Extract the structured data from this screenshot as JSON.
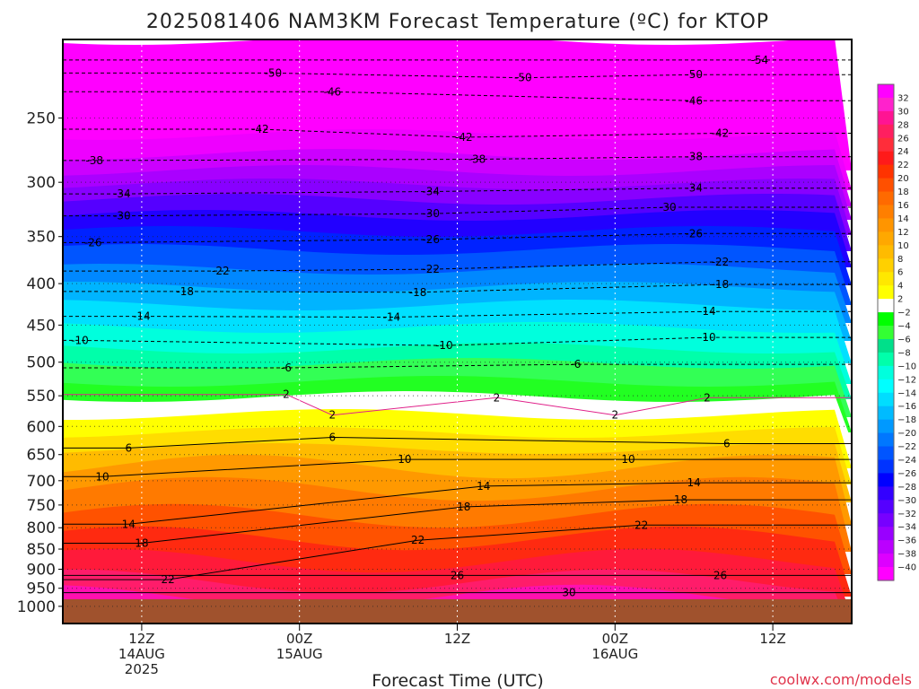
{
  "chart_data": {
    "type": "heatmap",
    "title": "2025081406 NAM3KM Forecast Temperature (ºC) for KTOP",
    "xlabel": "Forecast Time (UTC)",
    "ylabel": "",
    "credit": "coolwx.com/models",
    "x_range_hours": [
      0,
      60
    ],
    "y_range_hpa": [
      200,
      1050
    ],
    "y_scale": "log",
    "ground_level_hpa": 980,
    "ground_color": "#a0522d",
    "y_ticks": [
      250,
      300,
      350,
      400,
      450,
      500,
      550,
      600,
      650,
      700,
      750,
      800,
      850,
      900,
      950,
      1000
    ],
    "x_ticks": [
      {
        "hour": 6,
        "line1": "12Z",
        "line2": "14AUG",
        "line3": "2025"
      },
      {
        "hour": 18,
        "line1": "00Z",
        "line2": "15AUG",
        "line3": ""
      },
      {
        "hour": 30,
        "line1": "12Z",
        "line2": "",
        "line3": ""
      },
      {
        "hour": 42,
        "line1": "00Z",
        "line2": "16AUG",
        "line3": ""
      },
      {
        "hour": 54,
        "line1": "12Z",
        "line2": "",
        "line3": ""
      }
    ],
    "grid": true,
    "colorbar": {
      "position": "right",
      "labels": [
        "32",
        "30",
        "28",
        "26",
        "24",
        "22",
        "20",
        "18",
        "16",
        "14",
        "12",
        "10",
        "8",
        "6",
        "4",
        "2",
        "−2",
        "−4",
        "−6",
        "−8",
        "−10",
        "−12",
        "−14",
        "−16",
        "−18",
        "−20",
        "−22",
        "−24",
        "−26",
        "−28",
        "−30",
        "−32",
        "−34",
        "−36",
        "−38",
        "−40"
      ],
      "colors": [
        "#ff00ff",
        "#ff22cc",
        "#ff1493",
        "#ff1f60",
        "#ff2d3a",
        "#ff1a1a",
        "#ff3300",
        "#ff5000",
        "#ff6a00",
        "#ff7f00",
        "#ff9500",
        "#ffa800",
        "#ffbb00",
        "#ffd000",
        "#ffe800",
        "#ffff00",
        "#ffffff",
        "#00ff00",
        "#33ff33",
        "#00e08a",
        "#00ffaa",
        "#00ffdd",
        "#00ffff",
        "#00ddff",
        "#00bbff",
        "#0099ff",
        "#0077ff",
        "#0055ff",
        "#0033ff",
        "#0000ff",
        "#3300ff",
        "#5500ff",
        "#7700ff",
        "#9900ff",
        "#bb00ff",
        "#dd00ff",
        "#ff00ff"
      ]
    },
    "contour_labels": [
      {
        "v": "-54",
        "t": 53,
        "p": 212
      },
      {
        "v": "-50",
        "t": 16,
        "p": 220
      },
      {
        "v": "-50",
        "t": 35,
        "p": 223
      },
      {
        "v": "-50",
        "t": 48,
        "p": 221
      },
      {
        "v": "-46",
        "t": 20.5,
        "p": 232
      },
      {
        "v": "-46",
        "t": 48,
        "p": 238
      },
      {
        "v": "-42",
        "t": 15,
        "p": 258
      },
      {
        "v": "-42",
        "t": 30.5,
        "p": 264
      },
      {
        "v": "-42",
        "t": 50,
        "p": 261
      },
      {
        "v": "-38",
        "t": 2.4,
        "p": 282
      },
      {
        "v": "-38",
        "t": 31.5,
        "p": 281
      },
      {
        "v": "-38",
        "t": 48,
        "p": 279
      },
      {
        "v": "-34",
        "t": 4.5,
        "p": 310
      },
      {
        "v": "-34",
        "t": 28,
        "p": 308
      },
      {
        "v": "-34",
        "t": 48,
        "p": 305
      },
      {
        "v": "-30",
        "t": 4.5,
        "p": 330
      },
      {
        "v": "-30",
        "t": 28,
        "p": 328
      },
      {
        "v": "-30",
        "t": 46,
        "p": 322
      },
      {
        "v": "-26",
        "t": 2.3,
        "p": 356
      },
      {
        "v": "-26",
        "t": 28,
        "p": 353
      },
      {
        "v": "-26",
        "t": 48,
        "p": 347
      },
      {
        "v": "-22",
        "t": 12,
        "p": 386
      },
      {
        "v": "-22",
        "t": 28,
        "p": 384
      },
      {
        "v": "-22",
        "t": 50,
        "p": 376
      },
      {
        "v": "-18",
        "t": 9.3,
        "p": 409
      },
      {
        "v": "-18",
        "t": 27,
        "p": 410
      },
      {
        "v": "-18",
        "t": 50,
        "p": 401
      },
      {
        "v": "-14",
        "t": 6,
        "p": 439
      },
      {
        "v": "-14",
        "t": 25,
        "p": 440
      },
      {
        "v": "-14",
        "t": 49,
        "p": 433
      },
      {
        "v": "-10",
        "t": 1.3,
        "p": 470
      },
      {
        "v": "-10",
        "t": 29,
        "p": 477
      },
      {
        "v": "-10",
        "t": 49,
        "p": 466
      },
      {
        "v": "-6",
        "t": 17,
        "p": 508
      },
      {
        "v": "-6",
        "t": 39,
        "p": 503
      },
      {
        "v": "2",
        "t": 17,
        "p": 548
      },
      {
        "v": "2",
        "t": 33,
        "p": 553
      },
      {
        "v": "2",
        "t": 49,
        "p": 553
      },
      {
        "v": "2",
        "t": 20.5,
        "p": 581
      },
      {
        "v": "2",
        "t": 42,
        "p": 581
      },
      {
        "v": "6",
        "t": 5,
        "p": 638
      },
      {
        "v": "6",
        "t": 20.5,
        "p": 619
      },
      {
        "v": "6",
        "t": 50.5,
        "p": 630
      },
      {
        "v": "10",
        "t": 3,
        "p": 692
      },
      {
        "v": "10",
        "t": 26,
        "p": 659
      },
      {
        "v": "10",
        "t": 43,
        "p": 659
      },
      {
        "v": "14",
        "t": 5,
        "p": 792
      },
      {
        "v": "14",
        "t": 32,
        "p": 711
      },
      {
        "v": "14",
        "t": 48,
        "p": 704
      },
      {
        "v": "18",
        "t": 6,
        "p": 836
      },
      {
        "v": "18",
        "t": 30.5,
        "p": 754
      },
      {
        "v": "18",
        "t": 47,
        "p": 739
      },
      {
        "v": "22",
        "t": 8,
        "p": 927
      },
      {
        "v": "22",
        "t": 27,
        "p": 829
      },
      {
        "v": "22",
        "t": 44,
        "p": 794
      },
      {
        "v": "26",
        "t": 30,
        "p": 916
      },
      {
        "v": "26",
        "t": 50,
        "p": 916
      },
      {
        "v": "30",
        "t": 38.5,
        "p": 962
      }
    ]
  }
}
